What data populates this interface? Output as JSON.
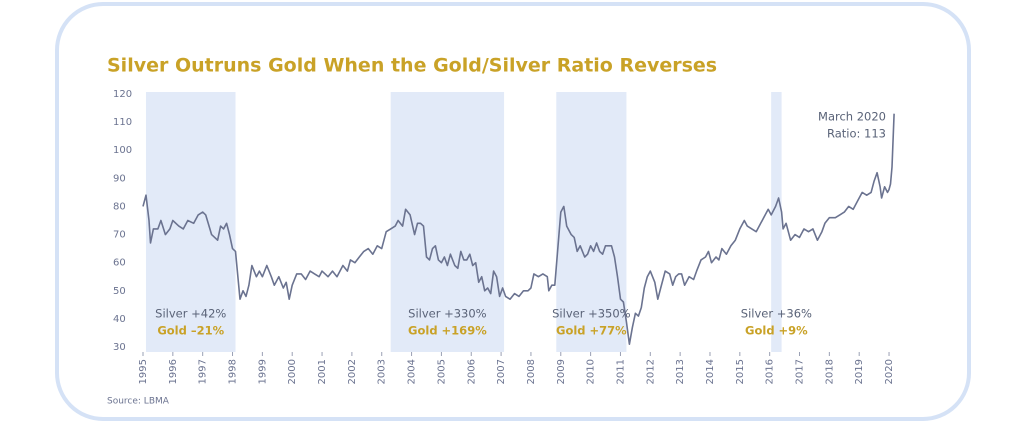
{
  "chart_data": {
    "type": "line",
    "title": "Silver Outruns Gold When the Gold/Silver Ratio Reverses",
    "source": "Source: LBMA",
    "color": "#6b7390",
    "band_color": "#e2eaf8",
    "x": [
      1995.0,
      1995.1,
      1995.2,
      1995.25,
      1995.35,
      1995.5,
      1995.6,
      1995.75,
      1995.9,
      1996.0,
      1996.2,
      1996.35,
      1996.5,
      1996.7,
      1996.85,
      1997.0,
      1997.1,
      1997.3,
      1997.5,
      1997.6,
      1997.7,
      1997.8,
      1997.9,
      1998.0,
      1998.1,
      1998.25,
      1998.35,
      1998.45,
      1998.55,
      1998.65,
      1998.8,
      1998.9,
      1999.0,
      1999.15,
      1999.3,
      1999.4,
      1999.55,
      1999.7,
      1999.8,
      1999.9,
      2000.0,
      2000.15,
      2000.3,
      2000.45,
      2000.6,
      2000.75,
      2000.9,
      2001.0,
      2001.2,
      2001.35,
      2001.5,
      2001.7,
      2001.85,
      2001.95,
      2002.1,
      2002.25,
      2002.4,
      2002.55,
      2002.7,
      2002.85,
      2003.0,
      2003.15,
      2003.3,
      2003.45,
      2003.55,
      2003.7,
      2003.8,
      2003.95,
      2004.1,
      2004.2,
      2004.3,
      2004.4,
      2004.5,
      2004.6,
      2004.7,
      2004.8,
      2004.9,
      2005.0,
      2005.1,
      2005.2,
      2005.3,
      2005.45,
      2005.55,
      2005.65,
      2005.75,
      2005.85,
      2005.95,
      2006.05,
      2006.15,
      2006.25,
      2006.35,
      2006.45,
      2006.55,
      2006.65,
      2006.75,
      2006.85,
      2006.95,
      2007.05,
      2007.15,
      2007.3,
      2007.45,
      2007.6,
      2007.75,
      2007.9,
      2008.0,
      2008.1,
      2008.25,
      2008.4,
      2008.55,
      2008.6,
      2008.7,
      2008.8,
      2008.9,
      2009.0,
      2009.1,
      2009.2,
      2009.35,
      2009.45,
      2009.55,
      2009.65,
      2009.8,
      2009.9,
      2010.0,
      2010.1,
      2010.2,
      2010.3,
      2010.4,
      2010.5,
      2010.7,
      2010.8,
      2010.9,
      2011.0,
      2011.1,
      2011.2,
      2011.3,
      2011.4,
      2011.5,
      2011.6,
      2011.7,
      2011.8,
      2011.9,
      2012.0,
      2012.15,
      2012.25,
      2012.35,
      2012.5,
      2012.65,
      2012.75,
      2012.85,
      2012.95,
      2013.05,
      2013.15,
      2013.3,
      2013.45,
      2013.55,
      2013.7,
      2013.85,
      2013.95,
      2014.05,
      2014.2,
      2014.3,
      2014.4,
      2014.55,
      2014.7,
      2014.85,
      2015.0,
      2015.15,
      2015.25,
      2015.4,
      2015.55,
      2015.7,
      2015.85,
      2015.95,
      2016.05,
      2016.2,
      2016.3,
      2016.4,
      2016.45,
      2016.55,
      2016.7,
      2016.85,
      2017.0,
      2017.15,
      2017.3,
      2017.45,
      2017.6,
      2017.75,
      2017.85,
      2018.0,
      2018.2,
      2018.35,
      2018.5,
      2018.65,
      2018.8,
      2018.95,
      2019.1,
      2019.25,
      2019.4,
      2019.5,
      2019.6,
      2019.7,
      2019.75,
      2019.85,
      2019.95,
      2020.0,
      2020.05,
      2020.1,
      2020.17
    ],
    "values": [
      80,
      84,
      75,
      67,
      72,
      72,
      75,
      70,
      72,
      75,
      73,
      72,
      75,
      74,
      77,
      78,
      77,
      70,
      68,
      73,
      72,
      74,
      70,
      65,
      64,
      47,
      50,
      48,
      52,
      59,
      55,
      57,
      55,
      59,
      55,
      52,
      55,
      51,
      53,
      47,
      52,
      56,
      56,
      54,
      57,
      56,
      55,
      57,
      55,
      57,
      55,
      59,
      57,
      61,
      60,
      62,
      64,
      65,
      63,
      66,
      65,
      71,
      72,
      73,
      75,
      73,
      79,
      77,
      70,
      74,
      74,
      73,
      62,
      61,
      65,
      66,
      61,
      60,
      62,
      59,
      63,
      59,
      58,
      64,
      61,
      61,
      63,
      59,
      60,
      53,
      55,
      50,
      51,
      49,
      57,
      55,
      48,
      51,
      48,
      47,
      49,
      48,
      50,
      50,
      51,
      56,
      55,
      56,
      55,
      50,
      52,
      52,
      65,
      78,
      80,
      73,
      70,
      69,
      64,
      66,
      62,
      63,
      66,
      64,
      67,
      64,
      63,
      66,
      66,
      62,
      55,
      47,
      46,
      39,
      31,
      37,
      42,
      41,
      44,
      51,
      55,
      57,
      53,
      47,
      51,
      57,
      56,
      52,
      55,
      56,
      56,
      52,
      55,
      54,
      57,
      61,
      62,
      64,
      60,
      62,
      61,
      65,
      63,
      66,
      68,
      72,
      75,
      73,
      72,
      71,
      74,
      77,
      79,
      77,
      80,
      83,
      78,
      72,
      74,
      68,
      70,
      69,
      72,
      71,
      72,
      68,
      71,
      74,
      76,
      76,
      77,
      78,
      80,
      79,
      82,
      85,
      84,
      85,
      89,
      92,
      87,
      83,
      87,
      85,
      86,
      88,
      94,
      113
    ],
    "xlim": [
      1995,
      2020.2
    ],
    "xticks": [
      1995,
      1996,
      1997,
      1998,
      1999,
      2000,
      2001,
      2002,
      2003,
      2004,
      2005,
      2006,
      2007,
      2008,
      2009,
      2010,
      2011,
      2012,
      2013,
      2014,
      2015,
      2016,
      2017,
      2018,
      2019,
      2020
    ],
    "ylim": [
      30,
      120
    ],
    "yticks": [
      30,
      40,
      50,
      60,
      70,
      80,
      90,
      100,
      110,
      120
    ],
    "shaded_ranges": [
      [
        1995.1,
        1998.1
      ],
      [
        2003.3,
        2007.1
      ],
      [
        2008.85,
        2011.2
      ],
      [
        2016.05,
        2016.4
      ]
    ],
    "annotations": [
      {
        "silver": "Silver +42%",
        "gold": "Gold –21%"
      },
      {
        "silver": "Silver +330%",
        "gold": "Gold +169%"
      },
      {
        "silver": "Silver +350%",
        "gold": "Gold +77%"
      },
      {
        "silver": "Silver +36%",
        "gold": "Gold +9%"
      }
    ],
    "end_label": [
      "March 2020",
      "Ratio: 113"
    ]
  }
}
